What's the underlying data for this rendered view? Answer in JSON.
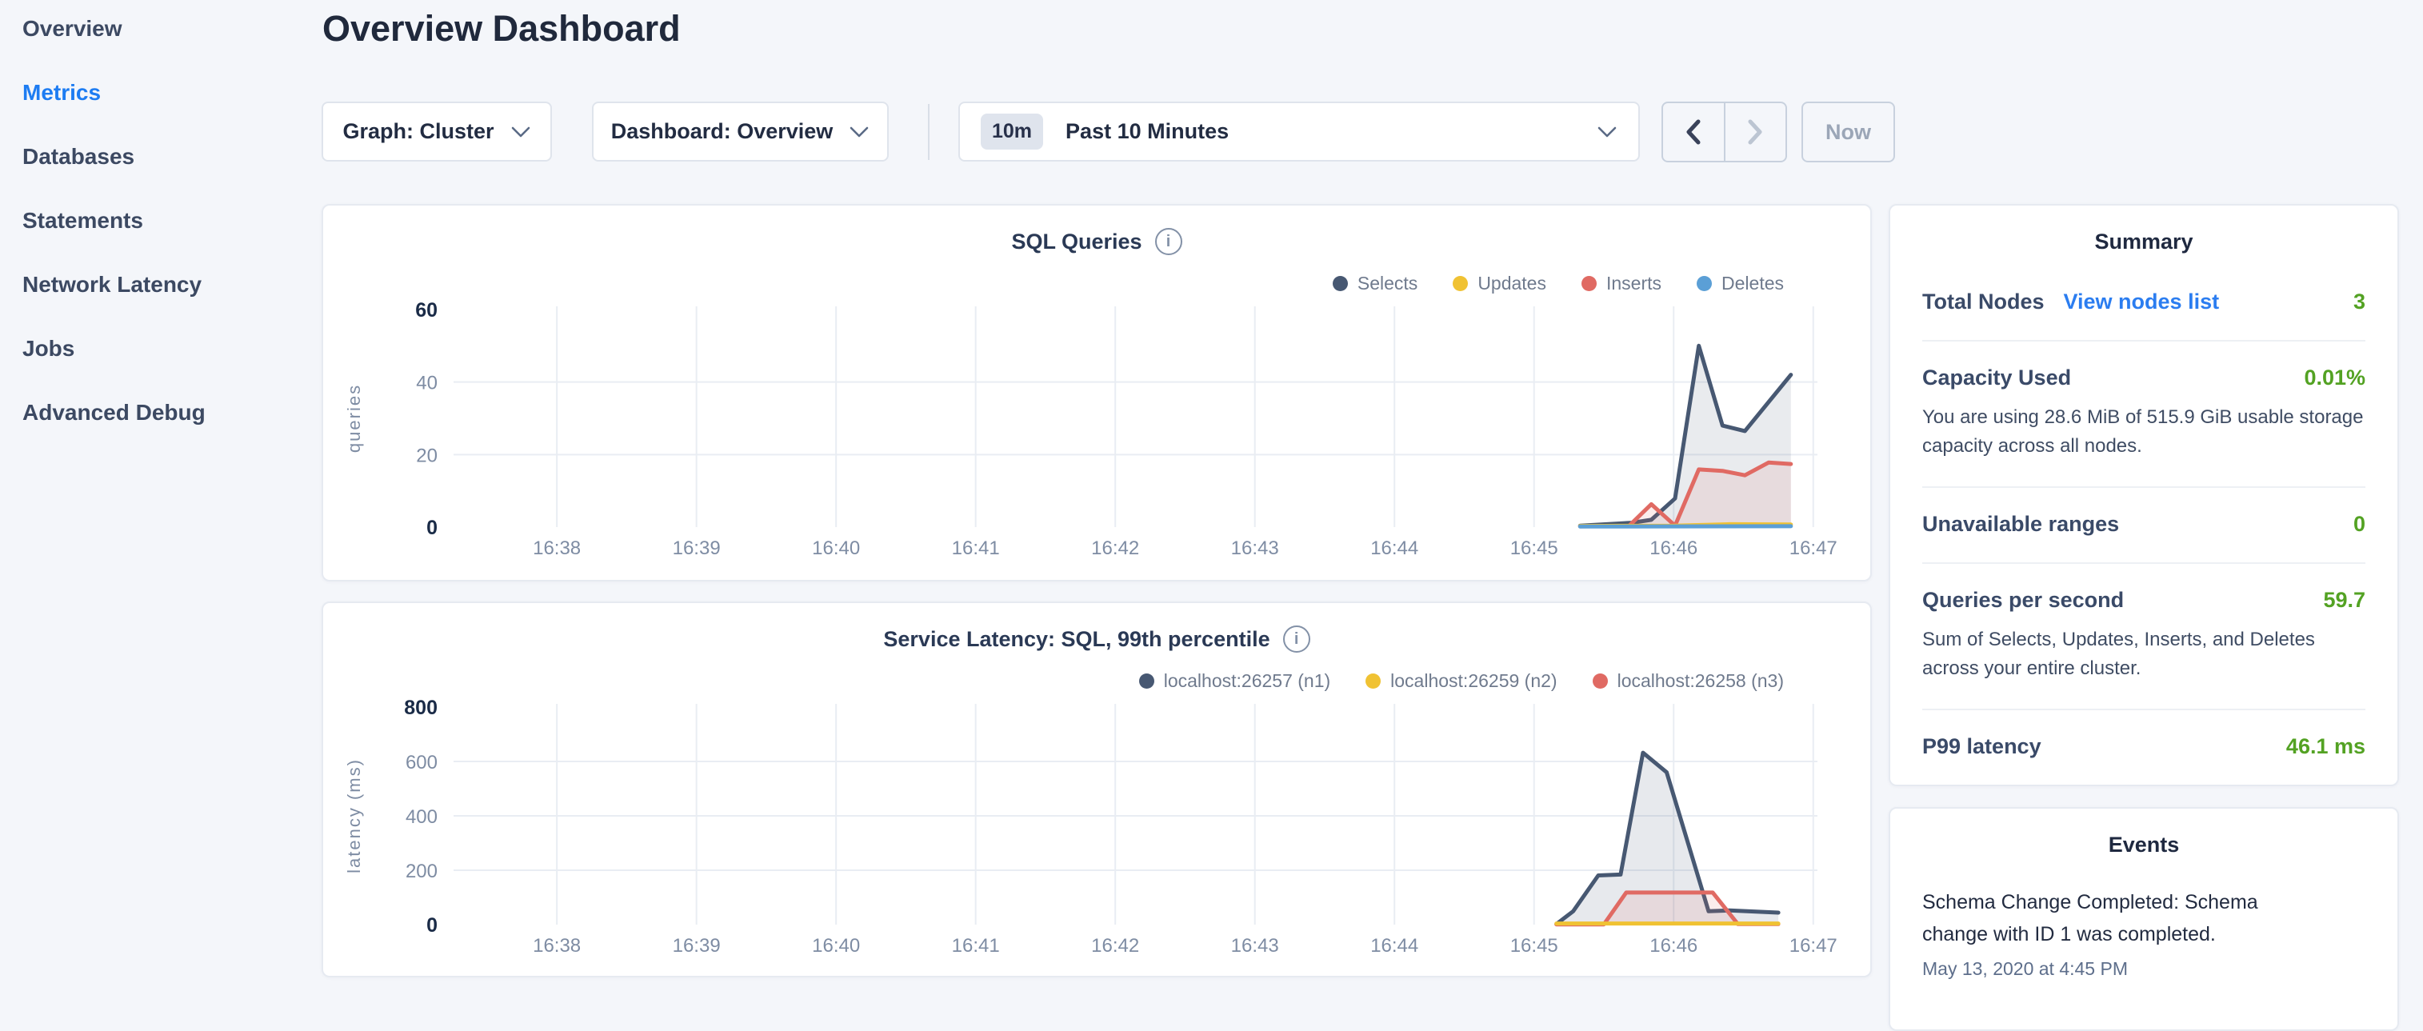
{
  "sidebar": {
    "items": [
      {
        "label": "Overview",
        "active": false
      },
      {
        "label": "Metrics",
        "active": true
      },
      {
        "label": "Databases",
        "active": false
      },
      {
        "label": "Statements",
        "active": false
      },
      {
        "label": "Network Latency",
        "active": false
      },
      {
        "label": "Jobs",
        "active": false
      },
      {
        "label": "Advanced Debug",
        "active": false
      }
    ]
  },
  "header": {
    "title": "Overview Dashboard"
  },
  "controls": {
    "graph_dropdown": "Graph: Cluster",
    "dashboard_dropdown": "Dashboard: Overview",
    "time_range_badge": "10m",
    "time_range_label": "Past 10 Minutes",
    "now_button": "Now"
  },
  "summary": {
    "title": "Summary",
    "rows": [
      {
        "label": "Total Nodes",
        "link": "View nodes list",
        "value": "3"
      },
      {
        "label": "Capacity Used",
        "value": "0.01%",
        "note": "You are using 28.6 MiB of 515.9 GiB usable storage capacity across all nodes."
      },
      {
        "label": "Unavailable ranges",
        "value": "0"
      },
      {
        "label": "Queries per second",
        "value": "59.7",
        "note": "Sum of Selects, Updates, Inserts, and Deletes across your entire cluster."
      },
      {
        "label": "P99 latency",
        "value": "46.1 ms"
      }
    ]
  },
  "events": {
    "title": "Events",
    "items": [
      {
        "text": "Schema Change Completed: Schema change with ID 1 was completed.",
        "time": "May 13, 2020 at 4:45 PM"
      }
    ]
  },
  "colors": {
    "accent_blue": "#1d7cf2",
    "success_green": "#53a223",
    "navy_series": "#475872",
    "yellow_series": "#f0c233",
    "red_series": "#e06a63",
    "blue_series": "#5b9fd6"
  },
  "chart_data": [
    {
      "type": "area",
      "title": "SQL Queries",
      "ylabel": "queries",
      "ylim": [
        0,
        60
      ],
      "yticks": [
        0,
        20,
        40,
        60
      ],
      "xlim_minutes": [
        37.26,
        47.03
      ],
      "x_ticks": [
        {
          "minute": 38,
          "label": "16:38"
        },
        {
          "minute": 39,
          "label": "16:39"
        },
        {
          "minute": 40,
          "label": "16:40"
        },
        {
          "minute": 41,
          "label": "16:41"
        },
        {
          "minute": 42,
          "label": "16:42"
        },
        {
          "minute": 43,
          "label": "16:43"
        },
        {
          "minute": 44,
          "label": "16:44"
        },
        {
          "minute": 45,
          "label": "16:45"
        },
        {
          "minute": 46,
          "label": "16:46"
        },
        {
          "minute": 47,
          "label": "16:47"
        }
      ],
      "legend_position": "top-right",
      "grid": true,
      "series": [
        {
          "name": "Selects",
          "color": "#475872",
          "fill": "rgba(71,88,114,0.12)",
          "z": 1,
          "points": [
            [
              45.33,
              0.4
            ],
            [
              45.7,
              1.2
            ],
            [
              45.84,
              2.0
            ],
            [
              46.01,
              7.9
            ],
            [
              46.18,
              50
            ],
            [
              46.35,
              28
            ],
            [
              46.51,
              26.5
            ],
            [
              46.84,
              42
            ]
          ]
        },
        {
          "name": "Updates",
          "color": "#f0c233",
          "fill": "rgba(240,194,51,0.10)",
          "z": 3,
          "points": [
            [
              45.33,
              0.3
            ],
            [
              46.0,
              0.4
            ],
            [
              46.4,
              0.8
            ],
            [
              46.84,
              0.7
            ]
          ]
        },
        {
          "name": "Inserts",
          "color": "#e06a63",
          "fill": "rgba(224,106,99,0.12)",
          "z": 2,
          "points": [
            [
              45.33,
              0.2
            ],
            [
              45.68,
              0.3
            ],
            [
              45.84,
              6.3
            ],
            [
              46.01,
              0.4
            ],
            [
              46.18,
              15.9
            ],
            [
              46.35,
              15.5
            ],
            [
              46.51,
              14.3
            ],
            [
              46.68,
              17.8
            ],
            [
              46.84,
              17.4
            ]
          ]
        },
        {
          "name": "Deletes",
          "color": "#5b9fd6",
          "fill": "rgba(91,159,214,0.10)",
          "z": 4,
          "points": [
            [
              45.33,
              0.15
            ],
            [
              46.84,
              0.25
            ]
          ]
        }
      ]
    },
    {
      "type": "area",
      "title": "Service Latency: SQL, 99th percentile",
      "ylabel": "latency (ms)",
      "ylim": [
        0,
        800
      ],
      "yticks": [
        0,
        200,
        400,
        600,
        800
      ],
      "xlim_minutes": [
        37.26,
        47.03
      ],
      "x_ticks": [
        {
          "minute": 38,
          "label": "16:38"
        },
        {
          "minute": 39,
          "label": "16:39"
        },
        {
          "minute": 40,
          "label": "16:40"
        },
        {
          "minute": 41,
          "label": "16:41"
        },
        {
          "minute": 42,
          "label": "16:42"
        },
        {
          "minute": 43,
          "label": "16:43"
        },
        {
          "minute": 44,
          "label": "16:44"
        },
        {
          "minute": 45,
          "label": "16:45"
        },
        {
          "minute": 46,
          "label": "16:46"
        },
        {
          "minute": 47,
          "label": "16:47"
        }
      ],
      "legend_position": "top-right",
      "grid": true,
      "series": [
        {
          "name": "localhost:26257 (n1)",
          "color": "#475872",
          "fill": "rgba(71,88,114,0.13)",
          "z": 1,
          "points": [
            [
              45.16,
              2
            ],
            [
              45.28,
              49
            ],
            [
              45.46,
              181
            ],
            [
              45.62,
              184
            ],
            [
              45.78,
              632
            ],
            [
              45.95,
              560
            ],
            [
              46.25,
              49
            ],
            [
              46.4,
              52
            ],
            [
              46.75,
              44
            ]
          ]
        },
        {
          "name": "localhost:26259 (n2)",
          "color": "#f0c233",
          "fill": "rgba(240,194,51,0.10)",
          "z": 3,
          "points": [
            [
              45.16,
              4
            ],
            [
              46.75,
              4
            ]
          ]
        },
        {
          "name": "localhost:26258 (n3)",
          "color": "#e06a63",
          "fill": "rgba(224,106,99,0.12)",
          "z": 2,
          "points": [
            [
              45.16,
              1
            ],
            [
              45.5,
              1
            ],
            [
              45.66,
              118
            ],
            [
              46.28,
              118
            ],
            [
              46.46,
              2
            ],
            [
              46.75,
              2
            ]
          ]
        }
      ]
    }
  ]
}
